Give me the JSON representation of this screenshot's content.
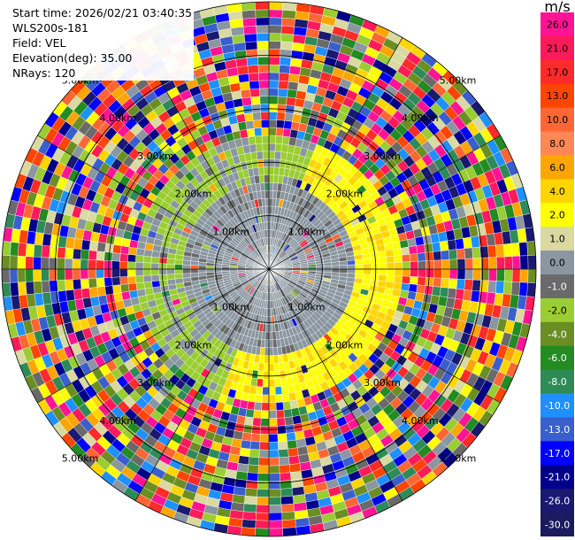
{
  "header": {
    "start_time": "Start time: 2026/02/21 03:40:35",
    "instrument": "WLS200s-181",
    "field": "Field: VEL",
    "elevation": "Elevation(deg): 35.00",
    "nrays": "NRays: 120"
  },
  "colorbar": {
    "unit": "m/s",
    "levels": [
      {
        "label": "26.0",
        "color": "#ff1493"
      },
      {
        "label": "21.0",
        "color": "#ff1a5a"
      },
      {
        "label": "17.0",
        "color": "#ff2a2a"
      },
      {
        "label": "13.0",
        "color": "#ff4500"
      },
      {
        "label": "10.0",
        "color": "#ff6633"
      },
      {
        "label": "8.0",
        "color": "#ff8855"
      },
      {
        "label": "6.0",
        "color": "#ffa500"
      },
      {
        "label": "4.0",
        "color": "#ffd500"
      },
      {
        "label": "2.0",
        "color": "#ffff00"
      },
      {
        "label": "1.0",
        "color": "#d9d9a0"
      },
      {
        "label": "0.0",
        "color": "#8a96a0"
      },
      {
        "label": "-1.0",
        "color": "#6a6a6a"
      },
      {
        "label": "-2.0",
        "color": "#9acd32"
      },
      {
        "label": "-4.0",
        "color": "#6b8e23"
      },
      {
        "label": "-6.0",
        "color": "#228b22"
      },
      {
        "label": "-8.0",
        "color": "#2e8b57"
      },
      {
        "label": "-10.0",
        "color": "#1e90ff"
      },
      {
        "label": "-13.0",
        "color": "#3a5fcd"
      },
      {
        "label": "-17.0",
        "color": "#0000ff"
      },
      {
        "label": "-21.0",
        "color": "#00008b"
      },
      {
        "label": "-26.0",
        "color": "#191970"
      },
      {
        "label": "-30.0",
        "color": "#1a1a5e"
      }
    ]
  },
  "chart_data": {
    "type": "heatmap",
    "projection": "polar PPI",
    "field": "VEL",
    "units": "m/s",
    "n_rays": 120,
    "ring_labels": [
      "1.00km",
      "2.00km",
      "3.00km",
      "4.00km",
      "5.00km"
    ],
    "range_rings_km": [
      1,
      2,
      3,
      4,
      5
    ],
    "max_range_km": 5,
    "grid": true,
    "pattern": {
      "inner_region_km": 2.5,
      "inner_north_west_velocity": -1.0,
      "inner_south_east_velocity": 2.0,
      "inner_outer_band_west_velocity": -2.0,
      "outer_region": "noise"
    }
  }
}
